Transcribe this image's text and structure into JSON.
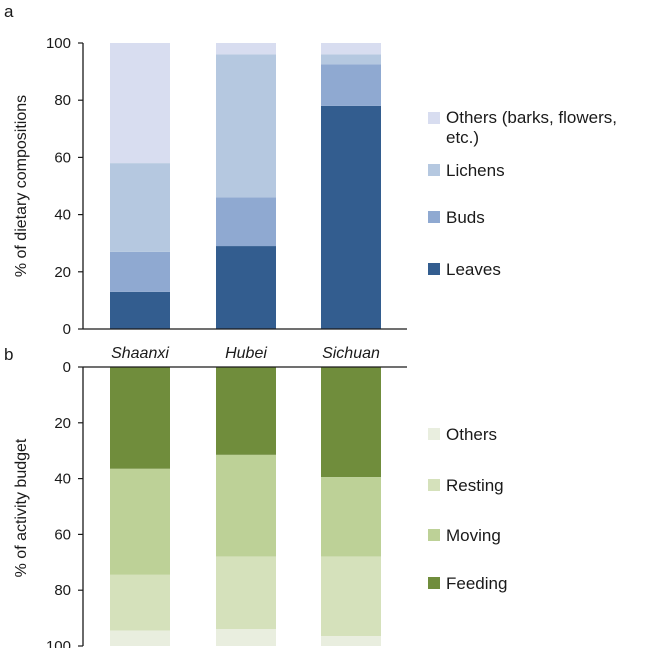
{
  "chart_data": [
    {
      "type": "bar",
      "stacked": true,
      "panel_label": "a",
      "ylabel": "% of dietary compositions",
      "ylim": [
        0,
        100
      ],
      "yticks": [
        0,
        20,
        40,
        60,
        80,
        100
      ],
      "categories": [
        "Shaanxi",
        "Hubei",
        "Sichuan"
      ],
      "series": [
        {
          "name": "Leaves",
          "values": [
            13,
            29,
            78
          ],
          "color": "#335d8f"
        },
        {
          "name": "Buds",
          "values": [
            14,
            17,
            14.5
          ],
          "color": "#8fa9d1"
        },
        {
          "name": "Lichens",
          "values": [
            31,
            50,
            3.5
          ],
          "color": "#b5c8e0"
        },
        {
          "name": "Others (barks, flowers, etc.)",
          "values": [
            42,
            4,
            4
          ],
          "color": "#d8ddf0"
        }
      ],
      "legend_position": "right"
    },
    {
      "type": "bar",
      "stacked": true,
      "panel_label": "b",
      "ylabel": "% of activity budget",
      "ylim": [
        0,
        100
      ],
      "y_inverted": true,
      "yticks": [
        0,
        20,
        40,
        60,
        80,
        100
      ],
      "categories": [
        "Shaanxi",
        "Hubei",
        "Sichuan"
      ],
      "series": [
        {
          "name": "Feeding",
          "values": [
            36.5,
            31.5,
            39.5
          ],
          "color": "#708d3c"
        },
        {
          "name": "Moving",
          "values": [
            38,
            36.5,
            28.5
          ],
          "color": "#bdd197"
        },
        {
          "name": "Resting",
          "values": [
            20,
            26,
            28.5
          ],
          "color": "#d5e1bb"
        },
        {
          "name": "Others",
          "values": [
            5.5,
            6,
            3.5
          ],
          "color": "#e9eedf"
        }
      ],
      "legend_position": "right"
    }
  ]
}
